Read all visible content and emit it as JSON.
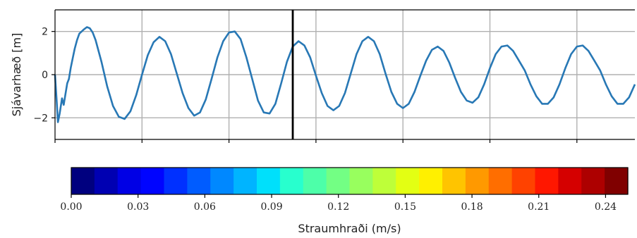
{
  "chart_data": [
    {
      "type": "line",
      "title": "",
      "xlabel": "",
      "ylabel": "Sjávarhæð [m]",
      "ylim": [
        -3,
        3
      ],
      "xlim": [
        0,
        1
      ],
      "yticks": [
        -2,
        0,
        2
      ],
      "xticks": [
        0.0,
        0.15,
        0.3,
        0.45,
        0.6,
        0.75,
        0.9
      ],
      "xtick_labels_visible": false,
      "grid": true,
      "current_time_marker_x": 0.41,
      "series": [
        {
          "color": "#2878b5",
          "x": [
            0.0,
            0.003,
            0.005,
            0.008,
            0.012,
            0.015,
            0.018,
            0.021,
            0.024,
            0.027,
            0.03,
            0.034,
            0.038,
            0.042,
            0.046,
            0.05,
            0.055,
            0.06,
            0.065,
            0.07,
            0.08,
            0.09,
            0.1,
            0.11,
            0.12,
            0.13,
            0.14,
            0.15,
            0.16,
            0.17,
            0.18,
            0.19,
            0.2,
            0.21,
            0.22,
            0.23,
            0.24,
            0.25,
            0.26,
            0.27,
            0.28,
            0.29,
            0.3,
            0.31,
            0.32,
            0.33,
            0.34,
            0.35,
            0.36,
            0.37,
            0.38,
            0.39,
            0.4,
            0.41,
            0.42,
            0.43,
            0.44,
            0.45,
            0.46,
            0.47,
            0.48,
            0.49,
            0.5,
            0.51,
            0.52,
            0.53,
            0.54,
            0.55,
            0.56,
            0.57,
            0.58,
            0.59,
            0.6,
            0.61,
            0.62,
            0.63,
            0.64,
            0.65,
            0.66,
            0.67,
            0.68,
            0.69,
            0.7,
            0.71,
            0.72,
            0.73,
            0.74,
            0.75,
            0.76,
            0.77,
            0.78,
            0.79,
            0.8,
            0.81,
            0.82,
            0.83,
            0.84,
            0.85,
            0.86,
            0.87,
            0.88,
            0.89,
            0.9,
            0.91,
            0.92,
            0.93,
            0.94,
            0.95,
            0.96,
            0.97,
            0.98,
            0.99,
            1.0
          ],
          "y": [
            0.0,
            -1.3,
            -2.2,
            -1.8,
            -1.1,
            -1.4,
            -0.9,
            -0.4,
            -0.2,
            0.3,
            0.7,
            1.2,
            1.6,
            1.9,
            2.0,
            2.1,
            2.2,
            2.15,
            1.95,
            1.6,
            0.6,
            -0.55,
            -1.45,
            -1.95,
            -2.05,
            -1.7,
            -0.95,
            0.0,
            0.9,
            1.5,
            1.75,
            1.55,
            0.95,
            0.05,
            -0.85,
            -1.55,
            -1.9,
            -1.75,
            -1.15,
            -0.2,
            0.8,
            1.55,
            1.95,
            2.0,
            1.65,
            0.8,
            -0.2,
            -1.2,
            -1.75,
            -1.8,
            -1.35,
            -0.4,
            0.6,
            1.3,
            1.55,
            1.35,
            0.8,
            -0.05,
            -0.85,
            -1.45,
            -1.65,
            -1.45,
            -0.85,
            0.05,
            0.95,
            1.55,
            1.75,
            1.55,
            0.95,
            0.05,
            -0.8,
            -1.35,
            -1.55,
            -1.35,
            -0.8,
            -0.05,
            0.65,
            1.15,
            1.3,
            1.1,
            0.55,
            -0.15,
            -0.8,
            -1.2,
            -1.3,
            -1.05,
            -0.45,
            0.3,
            0.95,
            1.3,
            1.35,
            1.1,
            0.65,
            0.2,
            -0.45,
            -1.0,
            -1.35,
            -1.35,
            -1.05,
            -0.45,
            0.3,
            0.95,
            1.3,
            1.35,
            1.1,
            0.65,
            0.2,
            -0.45,
            -1.0,
            -1.35,
            -1.35,
            -1.05,
            -0.45
          ]
        }
      ]
    },
    {
      "type": "heatmap",
      "title": "",
      "xlabel": "Straumhraði (m/s)",
      "ticks": [
        0.0,
        0.03,
        0.06,
        0.09,
        0.12,
        0.15,
        0.18,
        0.21,
        0.24
      ],
      "tick_labels": [
        "0.00",
        "0.03",
        "0.06",
        "0.09",
        "0.12",
        "0.15",
        "0.18",
        "0.21",
        "0.24"
      ],
      "range": [
        0.0,
        0.25
      ],
      "colors": [
        "#00007f",
        "#0000b2",
        "#0000e5",
        "#0004ff",
        "#0030ff",
        "#005cff",
        "#0088ff",
        "#00b4ff",
        "#00e0fb",
        "#28ffce",
        "#4dffa9",
        "#73ff84",
        "#98ff5e",
        "#beff39",
        "#e3ff13",
        "#fff000",
        "#ffc400",
        "#ff9900",
        "#ff6e00",
        "#ff4200",
        "#ff1700",
        "#d50000",
        "#ad0000",
        "#800000"
      ]
    }
  ]
}
